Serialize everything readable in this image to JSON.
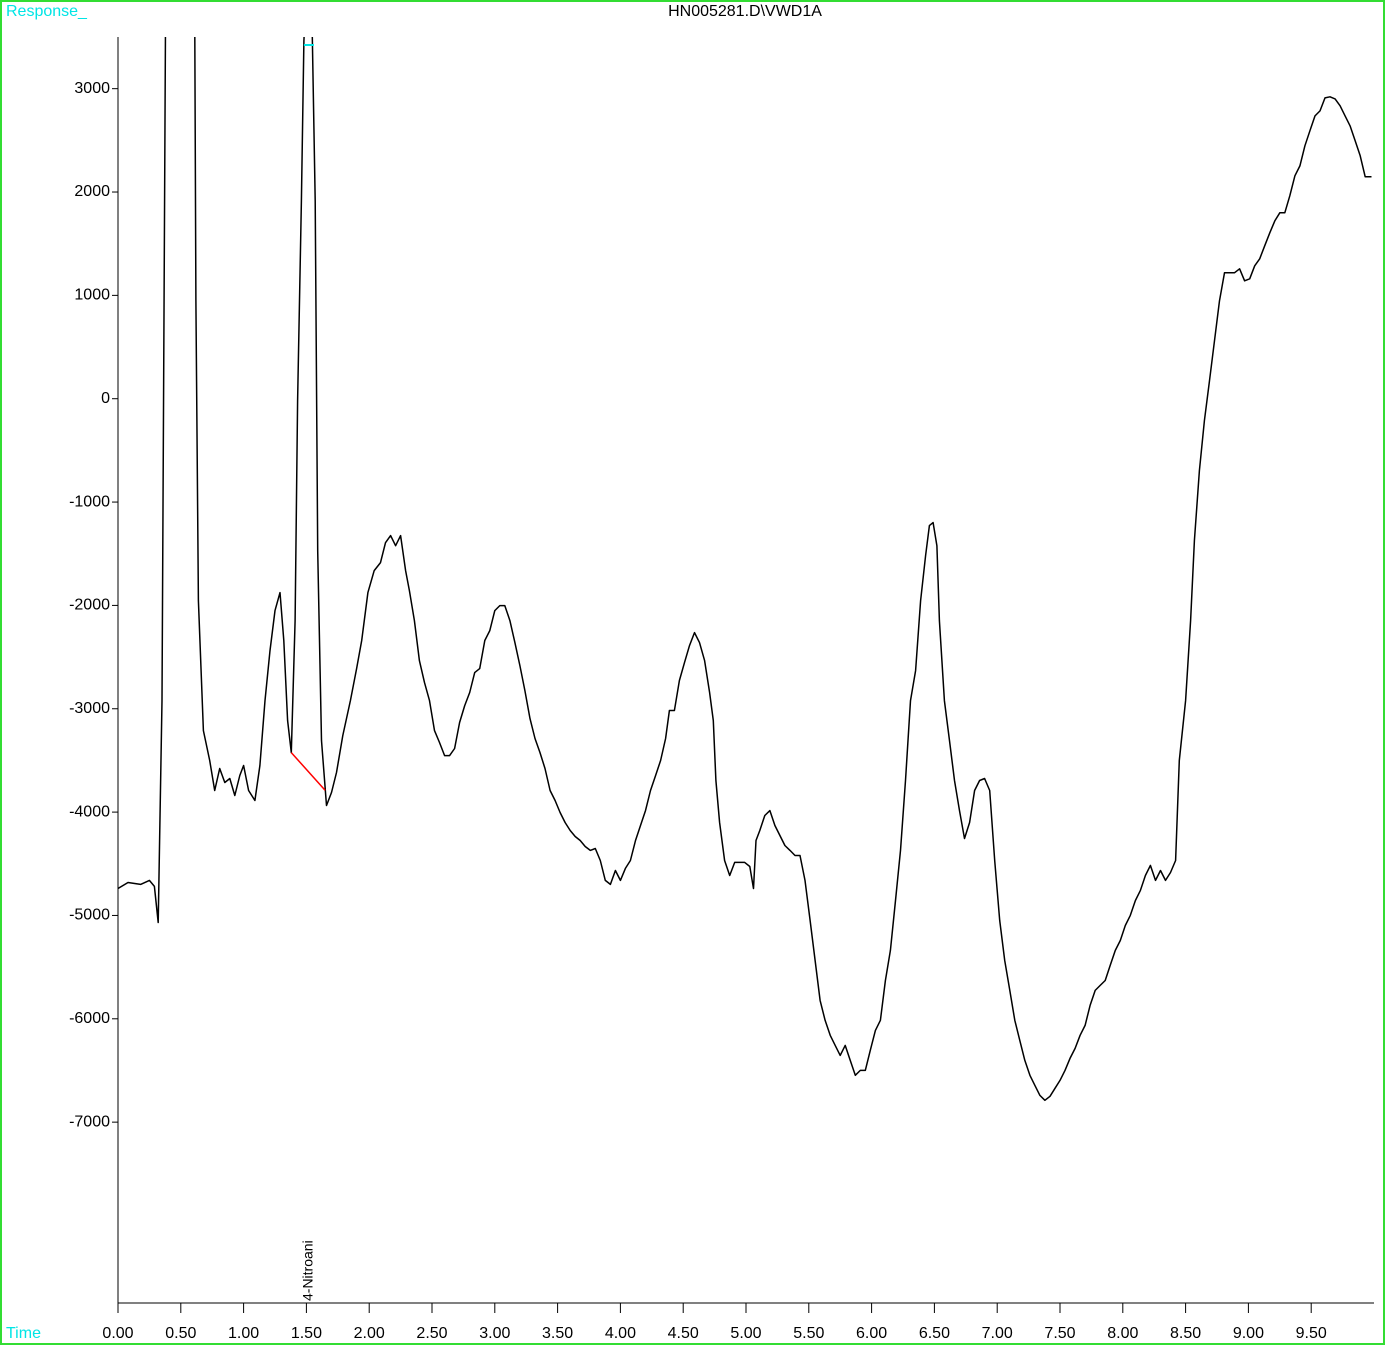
{
  "chart_data": {
    "type": "line",
    "title": "HN005281.D\\VWD1A",
    "y_label": "Response_",
    "x_label": "Time",
    "xlim": [
      0,
      10
    ],
    "ylim": [
      -8750,
      3500
    ],
    "xticks": [
      {
        "value": 0,
        "label": "0.00"
      },
      {
        "value": 0.5,
        "label": "0.50"
      },
      {
        "value": 1,
        "label": "1.00"
      },
      {
        "value": 1.5,
        "label": "1.50"
      },
      {
        "value": 2,
        "label": "2.00"
      },
      {
        "value": 2.5,
        "label": "2.50"
      },
      {
        "value": 3,
        "label": "3.00"
      },
      {
        "value": 3.5,
        "label": "3.50"
      },
      {
        "value": 4,
        "label": "4.00"
      },
      {
        "value": 4.5,
        "label": "4.50"
      },
      {
        "value": 5,
        "label": "5.00"
      },
      {
        "value": 5.5,
        "label": "5.50"
      },
      {
        "value": 6,
        "label": "6.00"
      },
      {
        "value": 6.5,
        "label": "6.50"
      },
      {
        "value": 7,
        "label": "7.00"
      },
      {
        "value": 7.5,
        "label": "7.50"
      },
      {
        "value": 8,
        "label": "8.00"
      },
      {
        "value": 8.5,
        "label": "8.50"
      },
      {
        "value": 9,
        "label": "9.00"
      },
      {
        "value": 9.5,
        "label": "9.50"
      }
    ],
    "yticks": [
      3000,
      2000,
      1000,
      0,
      -1000,
      -2000,
      -3000,
      -4000,
      -5000,
      -6000,
      -7000
    ],
    "series": [
      {
        "color": "#000000",
        "x": [
          0.0,
          0.08,
          0.18,
          0.25,
          0.29,
          0.32,
          0.35,
          0.38,
          0.61,
          0.62,
          0.64,
          0.68,
          0.73,
          0.77,
          0.81,
          0.85,
          0.89,
          0.93,
          0.97,
          1.0,
          1.04,
          1.09,
          1.13,
          1.17,
          1.21,
          1.25,
          1.29,
          1.32,
          1.35,
          1.38,
          1.41,
          1.43,
          1.46,
          1.48,
          1.5,
          1.54,
          1.57,
          1.59,
          1.62,
          1.66,
          1.7,
          1.74,
          1.79,
          1.85,
          1.9,
          1.94,
          1.99,
          2.04,
          2.09,
          2.13,
          2.17,
          2.21,
          2.25,
          2.29,
          2.32,
          2.36,
          2.4,
          2.44,
          2.48,
          2.52,
          2.56,
          2.6,
          2.64,
          2.68,
          2.72,
          2.76,
          2.8,
          2.84,
          2.88,
          2.92,
          2.96,
          3.0,
          3.04,
          3.08,
          3.12,
          3.16,
          3.2,
          3.24,
          3.28,
          3.32,
          3.36,
          3.4,
          3.44,
          3.48,
          3.52,
          3.56,
          3.6,
          3.64,
          3.68,
          3.72,
          3.76,
          3.8,
          3.84,
          3.88,
          3.92,
          3.96,
          4.0,
          4.04,
          4.08,
          4.12,
          4.16,
          4.2,
          4.24,
          4.28,
          4.32,
          4.36,
          4.39,
          4.43,
          4.47,
          4.51,
          4.55,
          4.59,
          4.63,
          4.67,
          4.71,
          4.74,
          4.76,
          4.79,
          4.83,
          4.87,
          4.91,
          4.99,
          5.03,
          5.06,
          5.08,
          5.11,
          5.15,
          5.19,
          5.23,
          5.27,
          5.31,
          5.35,
          5.39,
          5.43,
          5.47,
          5.51,
          5.55,
          5.59,
          5.63,
          5.67,
          5.71,
          5.75,
          5.79,
          5.83,
          5.87,
          5.91,
          5.95,
          5.99,
          6.03,
          6.07,
          6.11,
          6.15,
          6.19,
          6.23,
          6.27,
          6.31,
          6.35,
          6.39,
          6.43,
          6.46,
          6.49,
          6.52,
          6.54,
          6.58,
          6.62,
          6.66,
          6.7,
          6.74,
          6.78,
          6.82,
          6.86,
          6.9,
          6.94,
          6.98,
          7.02,
          7.06,
          7.1,
          7.14,
          7.18,
          7.22,
          7.26,
          7.3,
          7.34,
          7.38,
          7.42,
          7.46,
          7.5,
          7.54,
          7.58,
          7.62,
          7.66,
          7.7,
          7.74,
          7.78,
          7.82,
          7.86,
          7.9,
          7.94,
          7.98,
          8.02,
          8.06,
          8.1,
          8.14,
          8.18,
          8.22,
          8.26,
          8.3,
          8.34,
          8.38,
          8.42,
          8.45,
          8.5,
          8.54,
          8.57,
          8.61,
          8.65,
          8.69,
          8.73,
          8.77,
          8.81,
          8.85,
          8.89,
          8.93,
          8.97,
          9.01,
          9.05,
          9.09,
          9.13,
          9.17,
          9.21,
          9.25,
          9.29,
          9.33,
          9.37,
          9.41,
          9.45,
          9.49,
          9.53,
          9.57,
          9.61,
          9.65,
          9.69,
          9.73,
          9.77,
          9.81,
          9.85,
          9.89,
          9.93,
          9.98
        ],
        "values": [
          -4739,
          -4681,
          -4700,
          -4661,
          -4719,
          -5068,
          -2921,
          4000,
          4000,
          948,
          -1954,
          -3211,
          -3501,
          -3791,
          -3578,
          -3714,
          -3675,
          -3839,
          -3646,
          -3549,
          -3791,
          -3888,
          -3549,
          -2921,
          -2437,
          -2050,
          -1876,
          -2340,
          -3114,
          -3424,
          -2147,
          -19,
          1915,
          3462,
          4000,
          4000,
          1915,
          -1470,
          -3308,
          -3936,
          -3810,
          -3617,
          -3259,
          -2921,
          -2611,
          -2340,
          -1876,
          -1663,
          -1586,
          -1393,
          -1325,
          -1422,
          -1325,
          -1663,
          -1857,
          -2147,
          -2534,
          -2747,
          -2921,
          -3211,
          -3327,
          -3453,
          -3453,
          -3385,
          -3133,
          -2969,
          -2843,
          -2650,
          -2611,
          -2340,
          -2244,
          -2050,
          -2002,
          -2002,
          -2147,
          -2360,
          -2582,
          -2824,
          -3095,
          -3288,
          -3424,
          -3578,
          -3791,
          -3888,
          -4004,
          -4101,
          -4178,
          -4236,
          -4275,
          -4333,
          -4371,
          -4352,
          -4468,
          -4661,
          -4700,
          -4565,
          -4661,
          -4545,
          -4468,
          -4275,
          -4130,
          -3985,
          -3791,
          -3646,
          -3501,
          -3288,
          -3017,
          -3017,
          -2727,
          -2553,
          -2389,
          -2263,
          -2360,
          -2534,
          -2843,
          -3114,
          -3694,
          -4101,
          -4468,
          -4613,
          -4487,
          -4487,
          -4526,
          -4739,
          -4275,
          -4178,
          -4033,
          -3985,
          -4130,
          -4226,
          -4323,
          -4371,
          -4420,
          -4420,
          -4661,
          -5048,
          -5435,
          -5822,
          -6015,
          -6160,
          -6257,
          -6354,
          -6257,
          -6402,
          -6547,
          -6499,
          -6499,
          -6305,
          -6112,
          -6015,
          -5629,
          -5338,
          -4855,
          -4371,
          -3694,
          -2921,
          -2631,
          -1954,
          -1518,
          -1228,
          -1199,
          -1422,
          -2147,
          -2921,
          -3308,
          -3694,
          -3985,
          -4255,
          -4101,
          -3791,
          -3694,
          -3675,
          -3791,
          -4468,
          -5048,
          -5435,
          -5725,
          -6015,
          -6209,
          -6402,
          -6547,
          -6644,
          -6741,
          -6789,
          -6750,
          -6673,
          -6596,
          -6499,
          -6383,
          -6286,
          -6160,
          -6064,
          -5870,
          -5725,
          -5677,
          -5629,
          -5483,
          -5338,
          -5242,
          -5097,
          -5000,
          -4855,
          -4758,
          -4613,
          -4516,
          -4661,
          -4565,
          -4661,
          -4584,
          -4468,
          -3501,
          -2921,
          -2147,
          -1373,
          -696,
          -213,
          174,
          561,
          948,
          1219,
          1219,
          1219,
          1257,
          1141,
          1160,
          1286,
          1354,
          1480,
          1605,
          1721,
          1799,
          1799,
          1963,
          2157,
          2253,
          2447,
          2592,
          2737,
          2785,
          2911,
          2921,
          2901,
          2834,
          2737,
          2640,
          2495,
          2350,
          2147,
          2147
        ]
      }
    ],
    "baseline": {
      "color": "#ff0000",
      "x": [
        1.38,
        1.65
      ],
      "values": [
        -3424,
        -3790
      ]
    },
    "annotations": [
      {
        "text": "4-Nitroani",
        "x": 1.52
      }
    ]
  }
}
